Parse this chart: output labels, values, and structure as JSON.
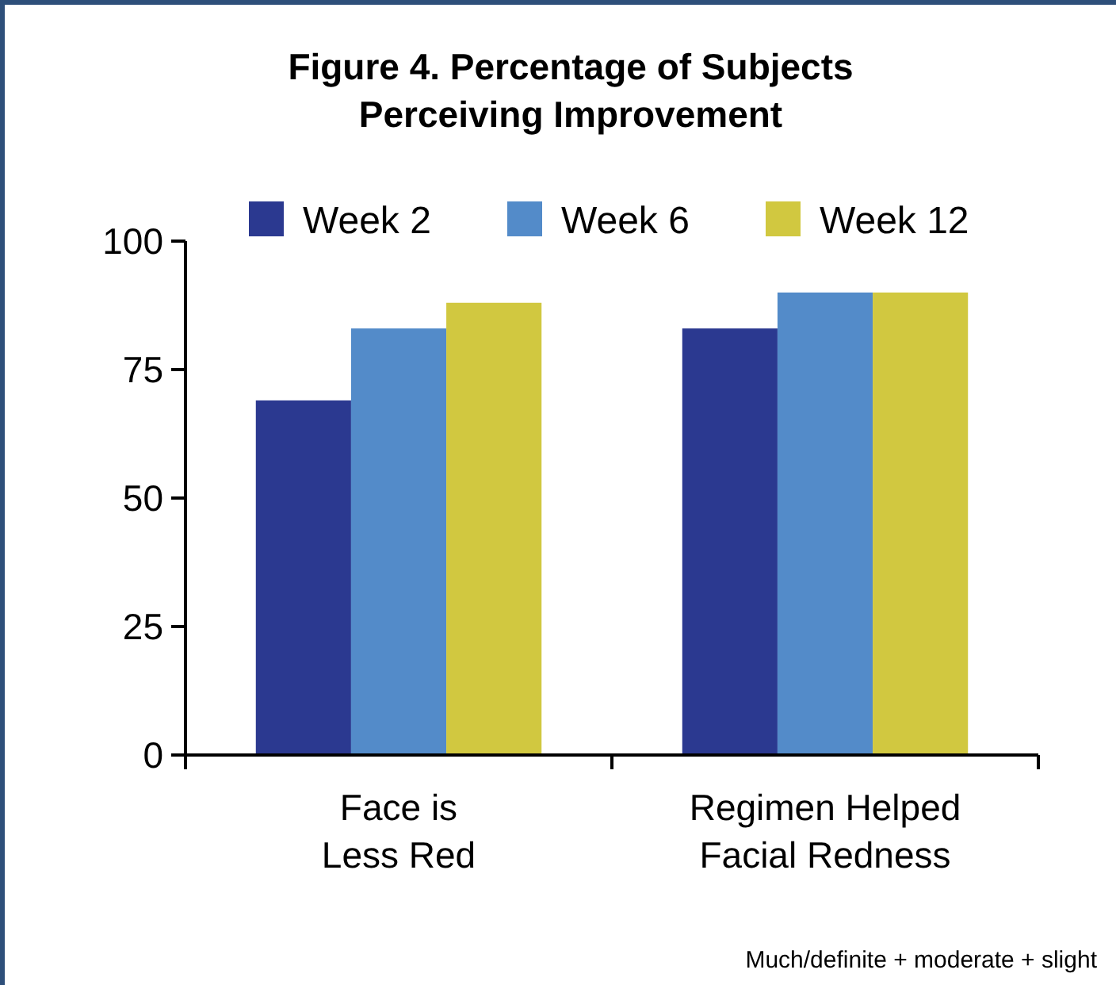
{
  "chart_data": {
    "type": "bar",
    "title": "Figure 4. Percentage of Subjects\nPerceiving Improvement",
    "categories": [
      "Face is\nLess Red",
      "Regimen Helped\nFacial Redness"
    ],
    "series": [
      {
        "name": "Week 2",
        "color": "#2b3990",
        "values": [
          69,
          83
        ]
      },
      {
        "name": "Week 6",
        "color": "#538bc9",
        "values": [
          83,
          90
        ]
      },
      {
        "name": "Week 12",
        "color": "#d1c840",
        "values": [
          88,
          90
        ]
      }
    ],
    "ylim": [
      0,
      100
    ],
    "yticks": [
      0,
      25,
      50,
      75,
      100
    ],
    "grid": false,
    "legend": "top",
    "annotations": [
      "Much/definite + moderate + slight"
    ]
  }
}
